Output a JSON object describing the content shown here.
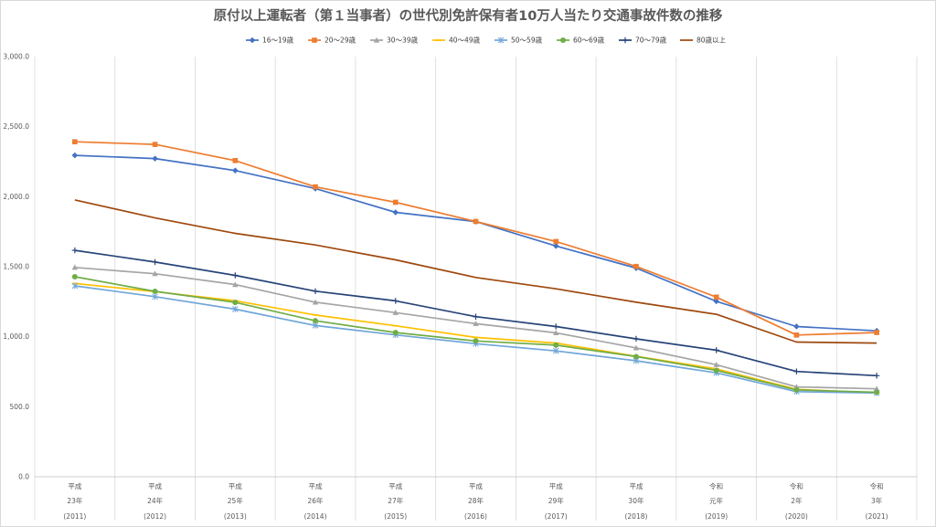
{
  "chart_data": {
    "type": "line",
    "title": "原付以上運転者（第１当事者）の世代別免許保有者10万人当たり交通事故件数の推移",
    "ylim": [
      0,
      3000
    ],
    "yticks": [
      "0.0",
      "500.0",
      "1,000.0",
      "1,500.0",
      "2,000.0",
      "2,500.0",
      "3,000.0"
    ],
    "ytick_values": [
      0,
      500,
      1000,
      1500,
      2000,
      2500,
      3000
    ],
    "categories": [
      {
        "era": "平成",
        "year": "23年",
        "western": "(2011)"
      },
      {
        "era": "平成",
        "year": "24年",
        "western": "(2012)"
      },
      {
        "era": "平成",
        "year": "25年",
        "western": "(2013)"
      },
      {
        "era": "平成",
        "year": "26年",
        "western": "(2014)"
      },
      {
        "era": "平成",
        "year": "27年",
        "western": "(2015)"
      },
      {
        "era": "平成",
        "year": "28年",
        "western": "(2016)"
      },
      {
        "era": "平成",
        "year": "29年",
        "western": "(2017)"
      },
      {
        "era": "平成",
        "year": "30年",
        "western": "(2018)"
      },
      {
        "era": "令和",
        "year": "元年",
        "western": "(2019)"
      },
      {
        "era": "令和",
        "year": "2年",
        "western": "(2020)"
      },
      {
        "era": "令和",
        "year": "3年",
        "western": "(2021)"
      }
    ],
    "legend_position": "top",
    "grid": "vertical",
    "series": [
      {
        "name": "16～19歳",
        "color": "#4472c4",
        "marker": "diamond",
        "values": [
          2295,
          2272,
          2187,
          2058,
          1888,
          1822,
          1648,
          1490,
          1253,
          1073,
          1042
        ]
      },
      {
        "name": "20～29歳",
        "color": "#ed7d31",
        "marker": "square",
        "values": [
          2392,
          2373,
          2258,
          2070,
          1960,
          1823,
          1680,
          1502,
          1283,
          1012,
          1030
        ]
      },
      {
        "name": "30～39歳",
        "color": "#a5a5a5",
        "marker": "triangle",
        "values": [
          1495,
          1450,
          1372,
          1246,
          1172,
          1093,
          1028,
          920,
          800,
          642,
          628
        ]
      },
      {
        "name": "40～49歳",
        "color": "#ffc000",
        "marker": "dash",
        "values": [
          1380,
          1322,
          1257,
          1155,
          1078,
          995,
          955,
          860,
          770,
          625,
          598
        ]
      },
      {
        "name": "50～59歳",
        "color": "#70a6d8",
        "marker": "star",
        "values": [
          1363,
          1286,
          1197,
          1080,
          1013,
          950,
          899,
          828,
          742,
          608,
          598
        ]
      },
      {
        "name": "60～69歳",
        "color": "#70ad47",
        "marker": "circle",
        "values": [
          1428,
          1324,
          1245,
          1114,
          1030,
          970,
          940,
          858,
          760,
          620,
          603
        ]
      },
      {
        "name": "70～79歳",
        "color": "#264478",
        "marker": "plus",
        "values": [
          1617,
          1533,
          1438,
          1325,
          1256,
          1143,
          1073,
          985,
          904,
          752,
          722
        ]
      },
      {
        "name": "80歳以上",
        "color": "#9e480e",
        "marker": "none",
        "values": [
          1977,
          1848,
          1738,
          1655,
          1549,
          1423,
          1342,
          1246,
          1160,
          962,
          955
        ]
      }
    ]
  }
}
